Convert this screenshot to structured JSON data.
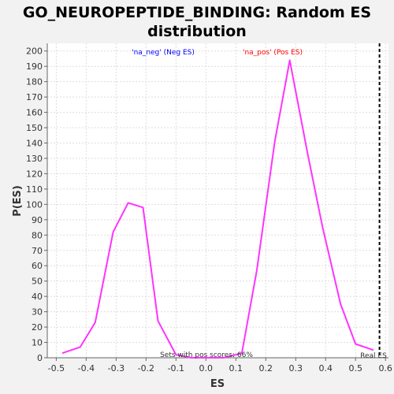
{
  "chart_data": {
    "type": "line",
    "title_lines": [
      "GO_NEUROPEPTIDE_BINDING: Random ES",
      "distribution"
    ],
    "xlabel": "ES",
    "ylabel": "P(ES)",
    "xlim": [
      -0.53,
      0.61
    ],
    "ylim": [
      0,
      205
    ],
    "xticks": [
      -0.5,
      -0.4,
      -0.3,
      -0.2,
      -0.1,
      0.0,
      0.1,
      0.2,
      0.3,
      0.4,
      0.5,
      0.6
    ],
    "xtick_labels": [
      "-0.5",
      "-0.4",
      "-0.3",
      "-0.2",
      "-0.1",
      "0.0",
      "0.1",
      "0.2",
      "0.3",
      "0.4",
      "0.5",
      "0.6"
    ],
    "yticks": [
      0,
      10,
      20,
      30,
      40,
      50,
      60,
      70,
      80,
      90,
      100,
      110,
      120,
      130,
      140,
      150,
      160,
      170,
      180,
      190,
      200
    ],
    "grid": true,
    "series": [
      {
        "color": "#ff33ff",
        "x": [
          -0.48,
          -0.42,
          -0.37,
          -0.31,
          -0.26,
          -0.21,
          -0.16,
          -0.1,
          -0.05,
          0.01,
          0.06,
          0.12,
          0.17,
          0.23,
          0.28,
          0.34,
          0.39,
          0.45,
          0.5,
          0.56
        ],
        "y": [
          3,
          7,
          23,
          82,
          101,
          98,
          24,
          2,
          0,
          0,
          0,
          3,
          57,
          141,
          194,
          133,
          85,
          35,
          9,
          5
        ]
      }
    ],
    "annotations": {
      "neg_label": "'na_neg' (Neg ES)",
      "neg_color": "#0000ff",
      "pos_label": "'na_pos' (Pos ES)",
      "pos_color": "#ff0000",
      "sets_text": "Sets with pos scores: 66%",
      "real_es_label": "Real ES",
      "real_es_x": 0.58
    }
  }
}
